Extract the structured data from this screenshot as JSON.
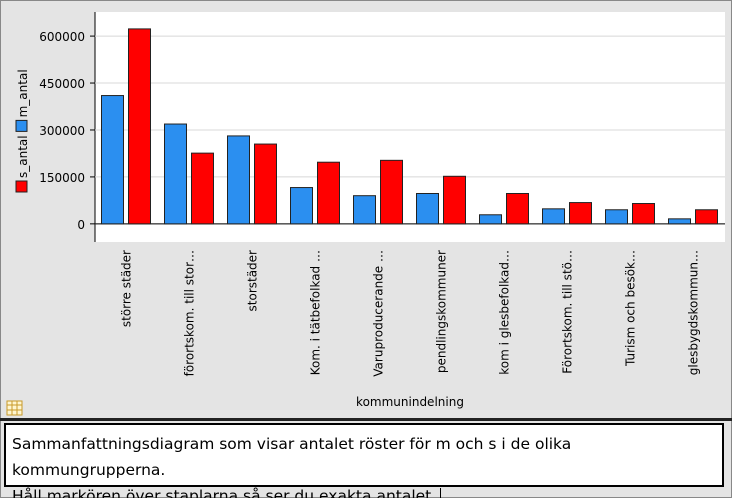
{
  "chart_data": {
    "type": "bar",
    "x_label": "kommunindelning",
    "categories": [
      "större städer",
      "förortskom. till stor…",
      "storstäder",
      "Kom. i tätbefolkad …",
      "Varuproducerande …",
      "pendlingskommuner",
      "kom i glesbefolkad…",
      "Förortskom. till stö…",
      "Turism och besök…",
      "glesbygdskommun…"
    ],
    "series": [
      {
        "name": "m_antal",
        "color": "#2b8ff0",
        "values": [
          410000,
          319000,
          281000,
          116000,
          90000,
          97000,
          29000,
          48000,
          45000,
          16000
        ]
      },
      {
        "name": "s_antal",
        "color": "#ff0000",
        "values": [
          623000,
          226000,
          255000,
          197000,
          203000,
          152000,
          97000,
          68000,
          65000,
          45000
        ]
      }
    ],
    "ylim": [
      -58000,
      677000
    ],
    "yticks": [
      0,
      150000,
      300000,
      450000,
      600000
    ],
    "grid": true
  },
  "text_box": {
    "lines": [
      "Sammanfattningsdiagram som visar antalet röster för m och s i de olika kommungrupperna.",
      "Håll markören över staplarna så ser du exakta antalet."
    ]
  }
}
